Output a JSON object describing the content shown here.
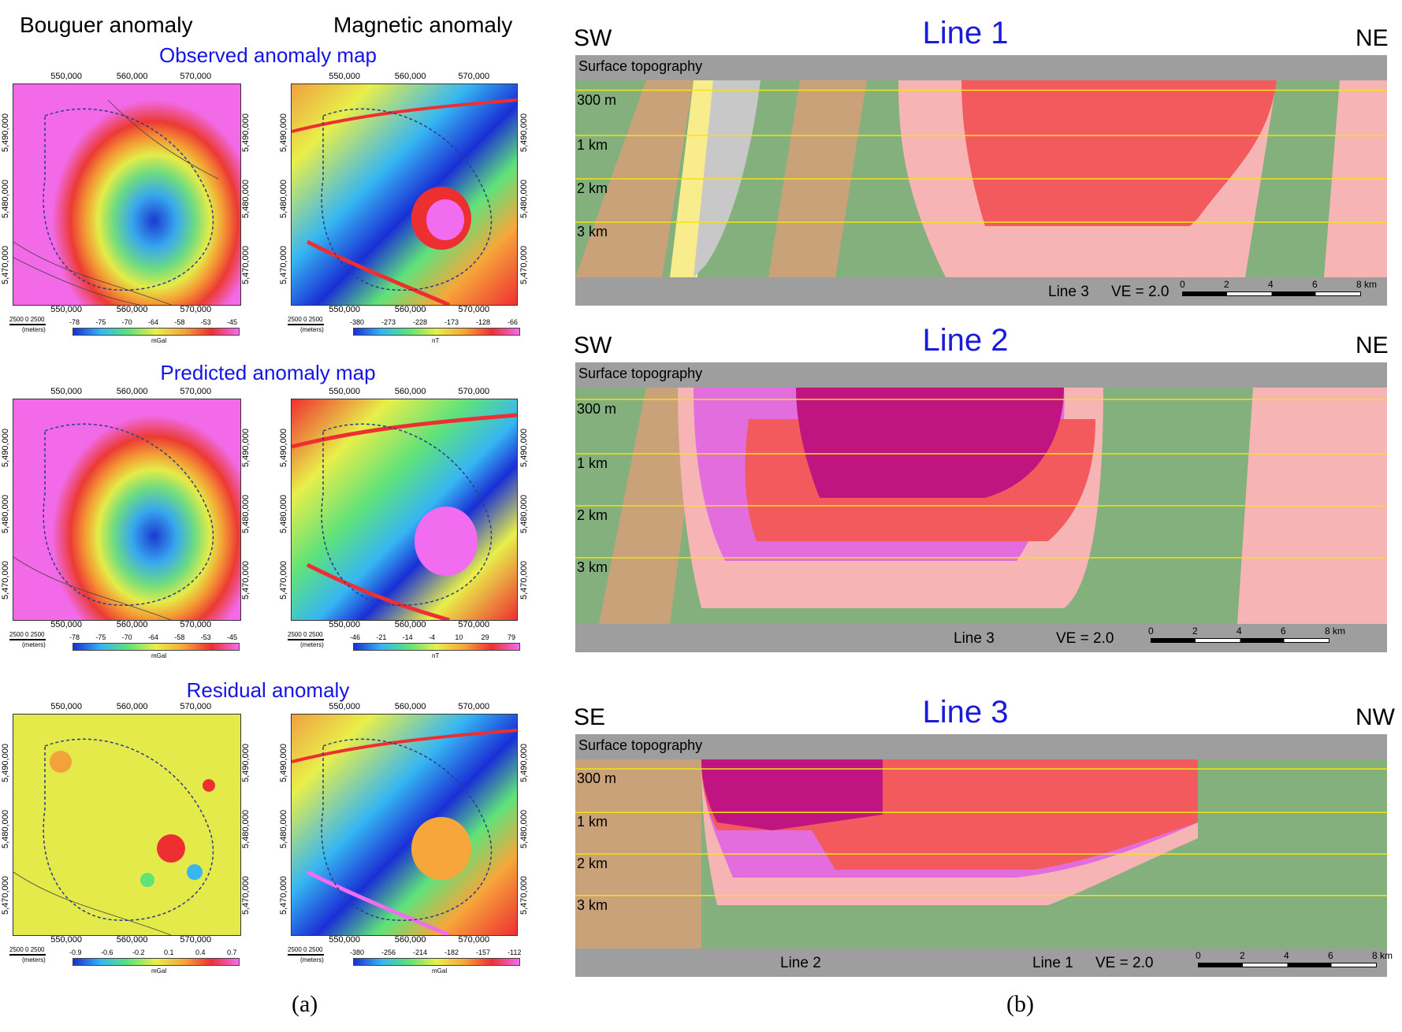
{
  "left": {
    "col_bouguer": "Bouguer anomaly",
    "col_magnetic": "Magnetic anomaly",
    "row_titles": [
      "Observed anomaly map",
      "Predicted anomaly map",
      "Residual anomaly"
    ],
    "x_ticks": [
      "550,000",
      "560,000",
      "570,000"
    ],
    "y_ticks": [
      "5,490,000",
      "5,480,000",
      "5,470,000"
    ],
    "scale_text": "2500   0   2500",
    "scale_unit": "(meters)",
    "bouguer_obs_cbar": [
      "-78",
      "-75",
      "-70",
      "-64",
      "-58",
      "-53",
      "-45"
    ],
    "bouguer_obs_unit": "mGal",
    "mag_obs_cbar": [
      "-380",
      "-273",
      "-228",
      "-173",
      "-128",
      "-66"
    ],
    "mag_obs_unit": "nT",
    "bouguer_pred_cbar": [
      "-78",
      "-75",
      "-70",
      "-64",
      "-58",
      "-53",
      "-45"
    ],
    "bouguer_pred_unit": "mGal",
    "mag_pred_cbar": [
      "-46",
      "-21",
      "-14",
      "-4",
      "10",
      "29",
      "79"
    ],
    "mag_pred_unit": "nT",
    "bouguer_res_cbar": [
      "-0.9",
      "-0.6",
      "-0.2",
      "0.1",
      "0.4",
      "0.7"
    ],
    "bouguer_res_unit": "mGal",
    "mag_res_cbar": [
      "-380",
      "-256",
      "-214",
      "-182",
      "-157",
      "-112"
    ],
    "mag_res_unit": "mGal",
    "label": "(a)"
  },
  "right": {
    "label": "(b)",
    "topo_label": "Surface topography",
    "depths": [
      "300 m",
      "1 km",
      "2 km",
      "3 km"
    ],
    "km_ticks": [
      "0",
      "2",
      "4",
      "6",
      "8 km"
    ],
    "sections": [
      {
        "title": "Line 1",
        "left_dir": "SW",
        "right_dir": "NE",
        "bottom_labels": [
          "Line 3"
        ],
        "ve": "VE = 2.0"
      },
      {
        "title": "Line 2",
        "left_dir": "SW",
        "right_dir": "NE",
        "bottom_labels": [
          "Line 3"
        ],
        "ve": "VE = 2.0"
      },
      {
        "title": "Line 3",
        "left_dir": "SE",
        "right_dir": "NW",
        "bottom_labels": [
          "Line 2",
          "Line 1"
        ],
        "ve": "VE = 2.0"
      }
    ]
  },
  "colors": {
    "green": "#84b07e",
    "tan": "#c9a27a",
    "pink": "#f6b4b4",
    "red": "#f25a5e",
    "magenta": "#c01581",
    "violet": "#e36ddc",
    "yellow": "#f8ec8c",
    "grey": "#c8c8c8",
    "gridline": "#f2e313"
  }
}
